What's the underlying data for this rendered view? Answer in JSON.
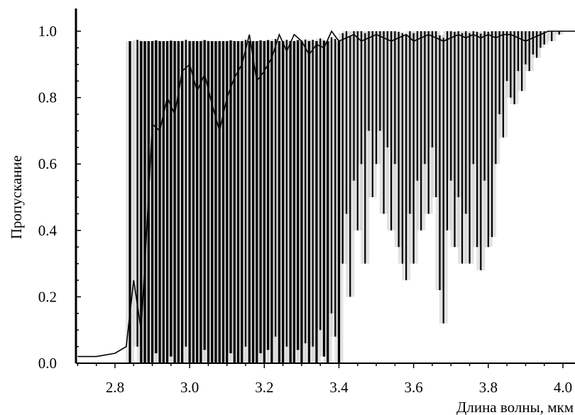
{
  "chart_data": {
    "type": "line",
    "title": "",
    "xlabel": "Длина волны, мкм",
    "ylabel": "Пропускание",
    "xlim": [
      2.7,
      4.05
    ],
    "ylim": [
      0.0,
      1.0
    ],
    "x_ticks": [
      "2.8",
      "3.0",
      "3.2",
      "3.4",
      "3.6",
      "3.8",
      "4.0"
    ],
    "y_ticks": [
      "0.0",
      "0.2",
      "0.4",
      "0.6",
      "0.8",
      "1.0"
    ],
    "grid": false,
    "legend": "none",
    "line_color": "#000000",
    "x": [
      2.7,
      2.75,
      2.8,
      2.83,
      2.85,
      2.87,
      2.88,
      2.9,
      2.92,
      2.94,
      2.96,
      2.98,
      3.0,
      3.02,
      3.04,
      3.06,
      3.08,
      3.1,
      3.12,
      3.14,
      3.16,
      3.18,
      3.2,
      3.22,
      3.24,
      3.26,
      3.28,
      3.3,
      3.32,
      3.34,
      3.36,
      3.38,
      3.4,
      3.42,
      3.44,
      3.46,
      3.48,
      3.5,
      3.52,
      3.54,
      3.56,
      3.58,
      3.6,
      3.62,
      3.64,
      3.66,
      3.68,
      3.7,
      3.72,
      3.74,
      3.76,
      3.78,
      3.8,
      3.82,
      3.84,
      3.86,
      3.88,
      3.9,
      3.92,
      3.94,
      3.96,
      3.98,
      4.0,
      4.02,
      4.05
    ],
    "y": [
      0.02,
      0.02,
      0.03,
      0.05,
      0.25,
      0.1,
      0.3,
      0.72,
      0.7,
      0.8,
      0.75,
      0.88,
      0.9,
      0.82,
      0.87,
      0.78,
      0.7,
      0.8,
      0.86,
      0.9,
      0.99,
      0.85,
      0.88,
      0.92,
      0.99,
      0.94,
      0.99,
      0.97,
      0.93,
      0.96,
      0.95,
      1.0,
      0.97,
      0.98,
      0.99,
      0.97,
      0.98,
      0.99,
      0.98,
      0.97,
      0.98,
      0.99,
      0.97,
      0.98,
      0.99,
      0.98,
      0.97,
      0.98,
      0.99,
      0.98,
      0.99,
      0.98,
      0.99,
      0.98,
      0.99,
      0.99,
      0.98,
      0.97,
      0.98,
      0.99,
      1.0,
      1.0,
      1.0,
      1.0,
      1.0
    ],
    "absorption_lines": [
      {
        "x": 2.84,
        "min": 0.0
      },
      {
        "x": 2.86,
        "min": 0.05
      },
      {
        "x": 2.87,
        "min": 0.0
      },
      {
        "x": 2.88,
        "min": 0.0
      },
      {
        "x": 2.89,
        "min": 0.0
      },
      {
        "x": 2.9,
        "min": 0.0
      },
      {
        "x": 2.91,
        "min": 0.03
      },
      {
        "x": 2.92,
        "min": 0.0
      },
      {
        "x": 2.93,
        "min": 0.0
      },
      {
        "x": 2.94,
        "min": 0.0
      },
      {
        "x": 2.95,
        "min": 0.02
      },
      {
        "x": 2.96,
        "min": 0.0
      },
      {
        "x": 2.97,
        "min": 0.0
      },
      {
        "x": 2.98,
        "min": 0.0
      },
      {
        "x": 2.99,
        "min": 0.05
      },
      {
        "x": 3.0,
        "min": 0.0
      },
      {
        "x": 3.01,
        "min": 0.0
      },
      {
        "x": 3.02,
        "min": 0.0
      },
      {
        "x": 3.03,
        "min": 0.0
      },
      {
        "x": 3.04,
        "min": 0.04
      },
      {
        "x": 3.05,
        "min": 0.0
      },
      {
        "x": 3.06,
        "min": 0.0
      },
      {
        "x": 3.07,
        "min": 0.0
      },
      {
        "x": 3.08,
        "min": 0.0
      },
      {
        "x": 3.09,
        "min": 0.0
      },
      {
        "x": 3.1,
        "min": 0.0
      },
      {
        "x": 3.11,
        "min": 0.03
      },
      {
        "x": 3.12,
        "min": 0.0
      },
      {
        "x": 3.13,
        "min": 0.0
      },
      {
        "x": 3.14,
        "min": 0.0
      },
      {
        "x": 3.15,
        "min": 0.05
      },
      {
        "x": 3.16,
        "min": 0.0
      },
      {
        "x": 3.17,
        "min": 0.0
      },
      {
        "x": 3.18,
        "min": 0.0
      },
      {
        "x": 3.19,
        "min": 0.03
      },
      {
        "x": 3.2,
        "min": 0.0
      },
      {
        "x": 3.21,
        "min": 0.04
      },
      {
        "x": 3.22,
        "min": 0.0
      },
      {
        "x": 3.23,
        "min": 0.08
      },
      {
        "x": 3.24,
        "min": 0.0
      },
      {
        "x": 3.25,
        "min": 0.0
      },
      {
        "x": 3.26,
        "min": 0.05
      },
      {
        "x": 3.27,
        "min": 0.0
      },
      {
        "x": 3.28,
        "min": 0.0
      },
      {
        "x": 3.29,
        "min": 0.04
      },
      {
        "x": 3.3,
        "min": 0.0
      },
      {
        "x": 3.31,
        "min": 0.06
      },
      {
        "x": 3.32,
        "min": 0.0
      },
      {
        "x": 3.33,
        "min": 0.05
      },
      {
        "x": 3.34,
        "min": 0.0
      },
      {
        "x": 3.35,
        "min": 0.1
      },
      {
        "x": 3.36,
        "min": 0.02
      },
      {
        "x": 3.37,
        "min": 0.0
      },
      {
        "x": 3.38,
        "min": 0.15
      },
      {
        "x": 3.39,
        "min": 0.08
      },
      {
        "x": 3.4,
        "min": 0.0
      },
      {
        "x": 3.41,
        "min": 0.3
      },
      {
        "x": 3.42,
        "min": 0.45
      },
      {
        "x": 3.43,
        "min": 0.2
      },
      {
        "x": 3.44,
        "min": 0.55
      },
      {
        "x": 3.45,
        "min": 0.4
      },
      {
        "x": 3.46,
        "min": 0.6
      },
      {
        "x": 3.47,
        "min": 0.3
      },
      {
        "x": 3.48,
        "min": 0.7
      },
      {
        "x": 3.49,
        "min": 0.5
      },
      {
        "x": 3.5,
        "min": 0.6
      },
      {
        "x": 3.51,
        "min": 0.7
      },
      {
        "x": 3.52,
        "min": 0.45
      },
      {
        "x": 3.53,
        "min": 0.65
      },
      {
        "x": 3.54,
        "min": 0.4
      },
      {
        "x": 3.55,
        "min": 0.6
      },
      {
        "x": 3.56,
        "min": 0.35
      },
      {
        "x": 3.57,
        "min": 0.3
      },
      {
        "x": 3.58,
        "min": 0.25
      },
      {
        "x": 3.59,
        "min": 0.45
      },
      {
        "x": 3.6,
        "min": 0.3
      },
      {
        "x": 3.61,
        "min": 0.55
      },
      {
        "x": 3.62,
        "min": 0.4
      },
      {
        "x": 3.63,
        "min": 0.6
      },
      {
        "x": 3.64,
        "min": 0.45
      },
      {
        "x": 3.65,
        "min": 0.65
      },
      {
        "x": 3.66,
        "min": 0.5
      },
      {
        "x": 3.67,
        "min": 0.22
      },
      {
        "x": 3.68,
        "min": 0.12
      },
      {
        "x": 3.69,
        "min": 0.4
      },
      {
        "x": 3.7,
        "min": 0.55
      },
      {
        "x": 3.71,
        "min": 0.35
      },
      {
        "x": 3.72,
        "min": 0.5
      },
      {
        "x": 3.73,
        "min": 0.3
      },
      {
        "x": 3.74,
        "min": 0.45
      },
      {
        "x": 3.75,
        "min": 0.3
      },
      {
        "x": 3.76,
        "min": 0.6
      },
      {
        "x": 3.77,
        "min": 0.35
      },
      {
        "x": 3.78,
        "min": 0.28
      },
      {
        "x": 3.79,
        "min": 0.55
      },
      {
        "x": 3.8,
        "min": 0.35
      },
      {
        "x": 3.81,
        "min": 0.38
      },
      {
        "x": 3.82,
        "min": 0.6
      },
      {
        "x": 3.83,
        "min": 0.75
      },
      {
        "x": 3.84,
        "min": 0.68
      },
      {
        "x": 3.85,
        "min": 0.85
      },
      {
        "x": 3.86,
        "min": 0.8
      },
      {
        "x": 3.87,
        "min": 0.78
      },
      {
        "x": 3.88,
        "min": 0.88
      },
      {
        "x": 3.89,
        "min": 0.82
      },
      {
        "x": 3.9,
        "min": 0.9
      },
      {
        "x": 3.91,
        "min": 0.88
      },
      {
        "x": 3.92,
        "min": 0.93
      },
      {
        "x": 3.93,
        "min": 0.92
      },
      {
        "x": 3.94,
        "min": 0.95
      },
      {
        "x": 3.95,
        "min": 0.96
      },
      {
        "x": 3.97,
        "min": 0.97
      },
      {
        "x": 3.99,
        "min": 0.99
      }
    ]
  }
}
